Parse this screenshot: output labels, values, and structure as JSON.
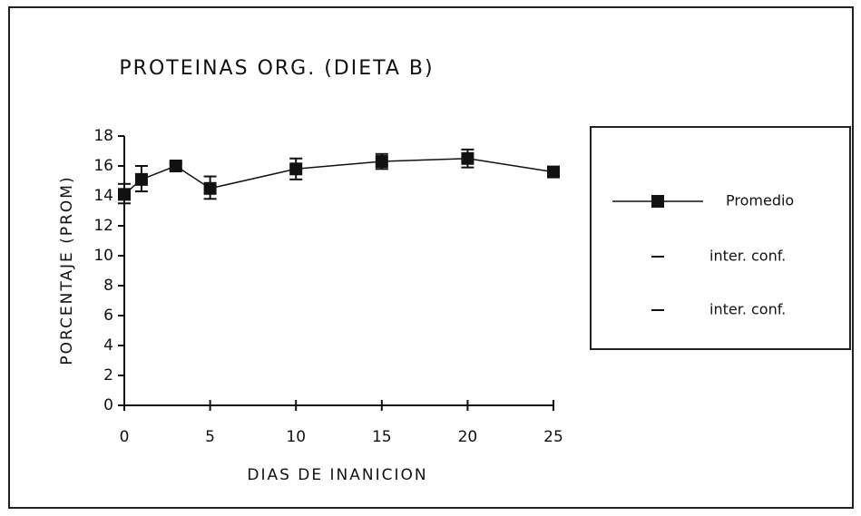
{
  "chart_data": {
    "type": "line",
    "title": "PROTEINAS ORG. (DIETA B)",
    "x_label": "DIAS DE INANICION",
    "y_label": "PORCENTAJE (PROM)",
    "x": [
      0,
      1,
      3,
      5,
      10,
      15,
      20,
      25
    ],
    "series": [
      {
        "name": "Promedio",
        "color": "#111111",
        "values": [
          14.1,
          15.1,
          16.0,
          14.5,
          15.8,
          16.3,
          16.5,
          15.6
        ]
      },
      {
        "name": "inter. conf.",
        "color": "#111111",
        "values": [
          14.8,
          16.0,
          16.2,
          15.3,
          16.5,
          16.8,
          17.1,
          15.9
        ]
      },
      {
        "name": "inter. conf.",
        "color": "#111111",
        "values": [
          13.5,
          14.3,
          15.8,
          13.8,
          15.1,
          15.8,
          15.9,
          15.3
        ]
      }
    ],
    "xlim": [
      0,
      25
    ],
    "xticks": [
      0,
      5,
      10,
      15,
      20,
      25
    ],
    "ylim": [
      0,
      18
    ],
    "yticks": [
      0,
      2,
      4,
      6,
      8,
      10,
      12,
      14,
      16,
      18
    ],
    "legend": "right"
  }
}
